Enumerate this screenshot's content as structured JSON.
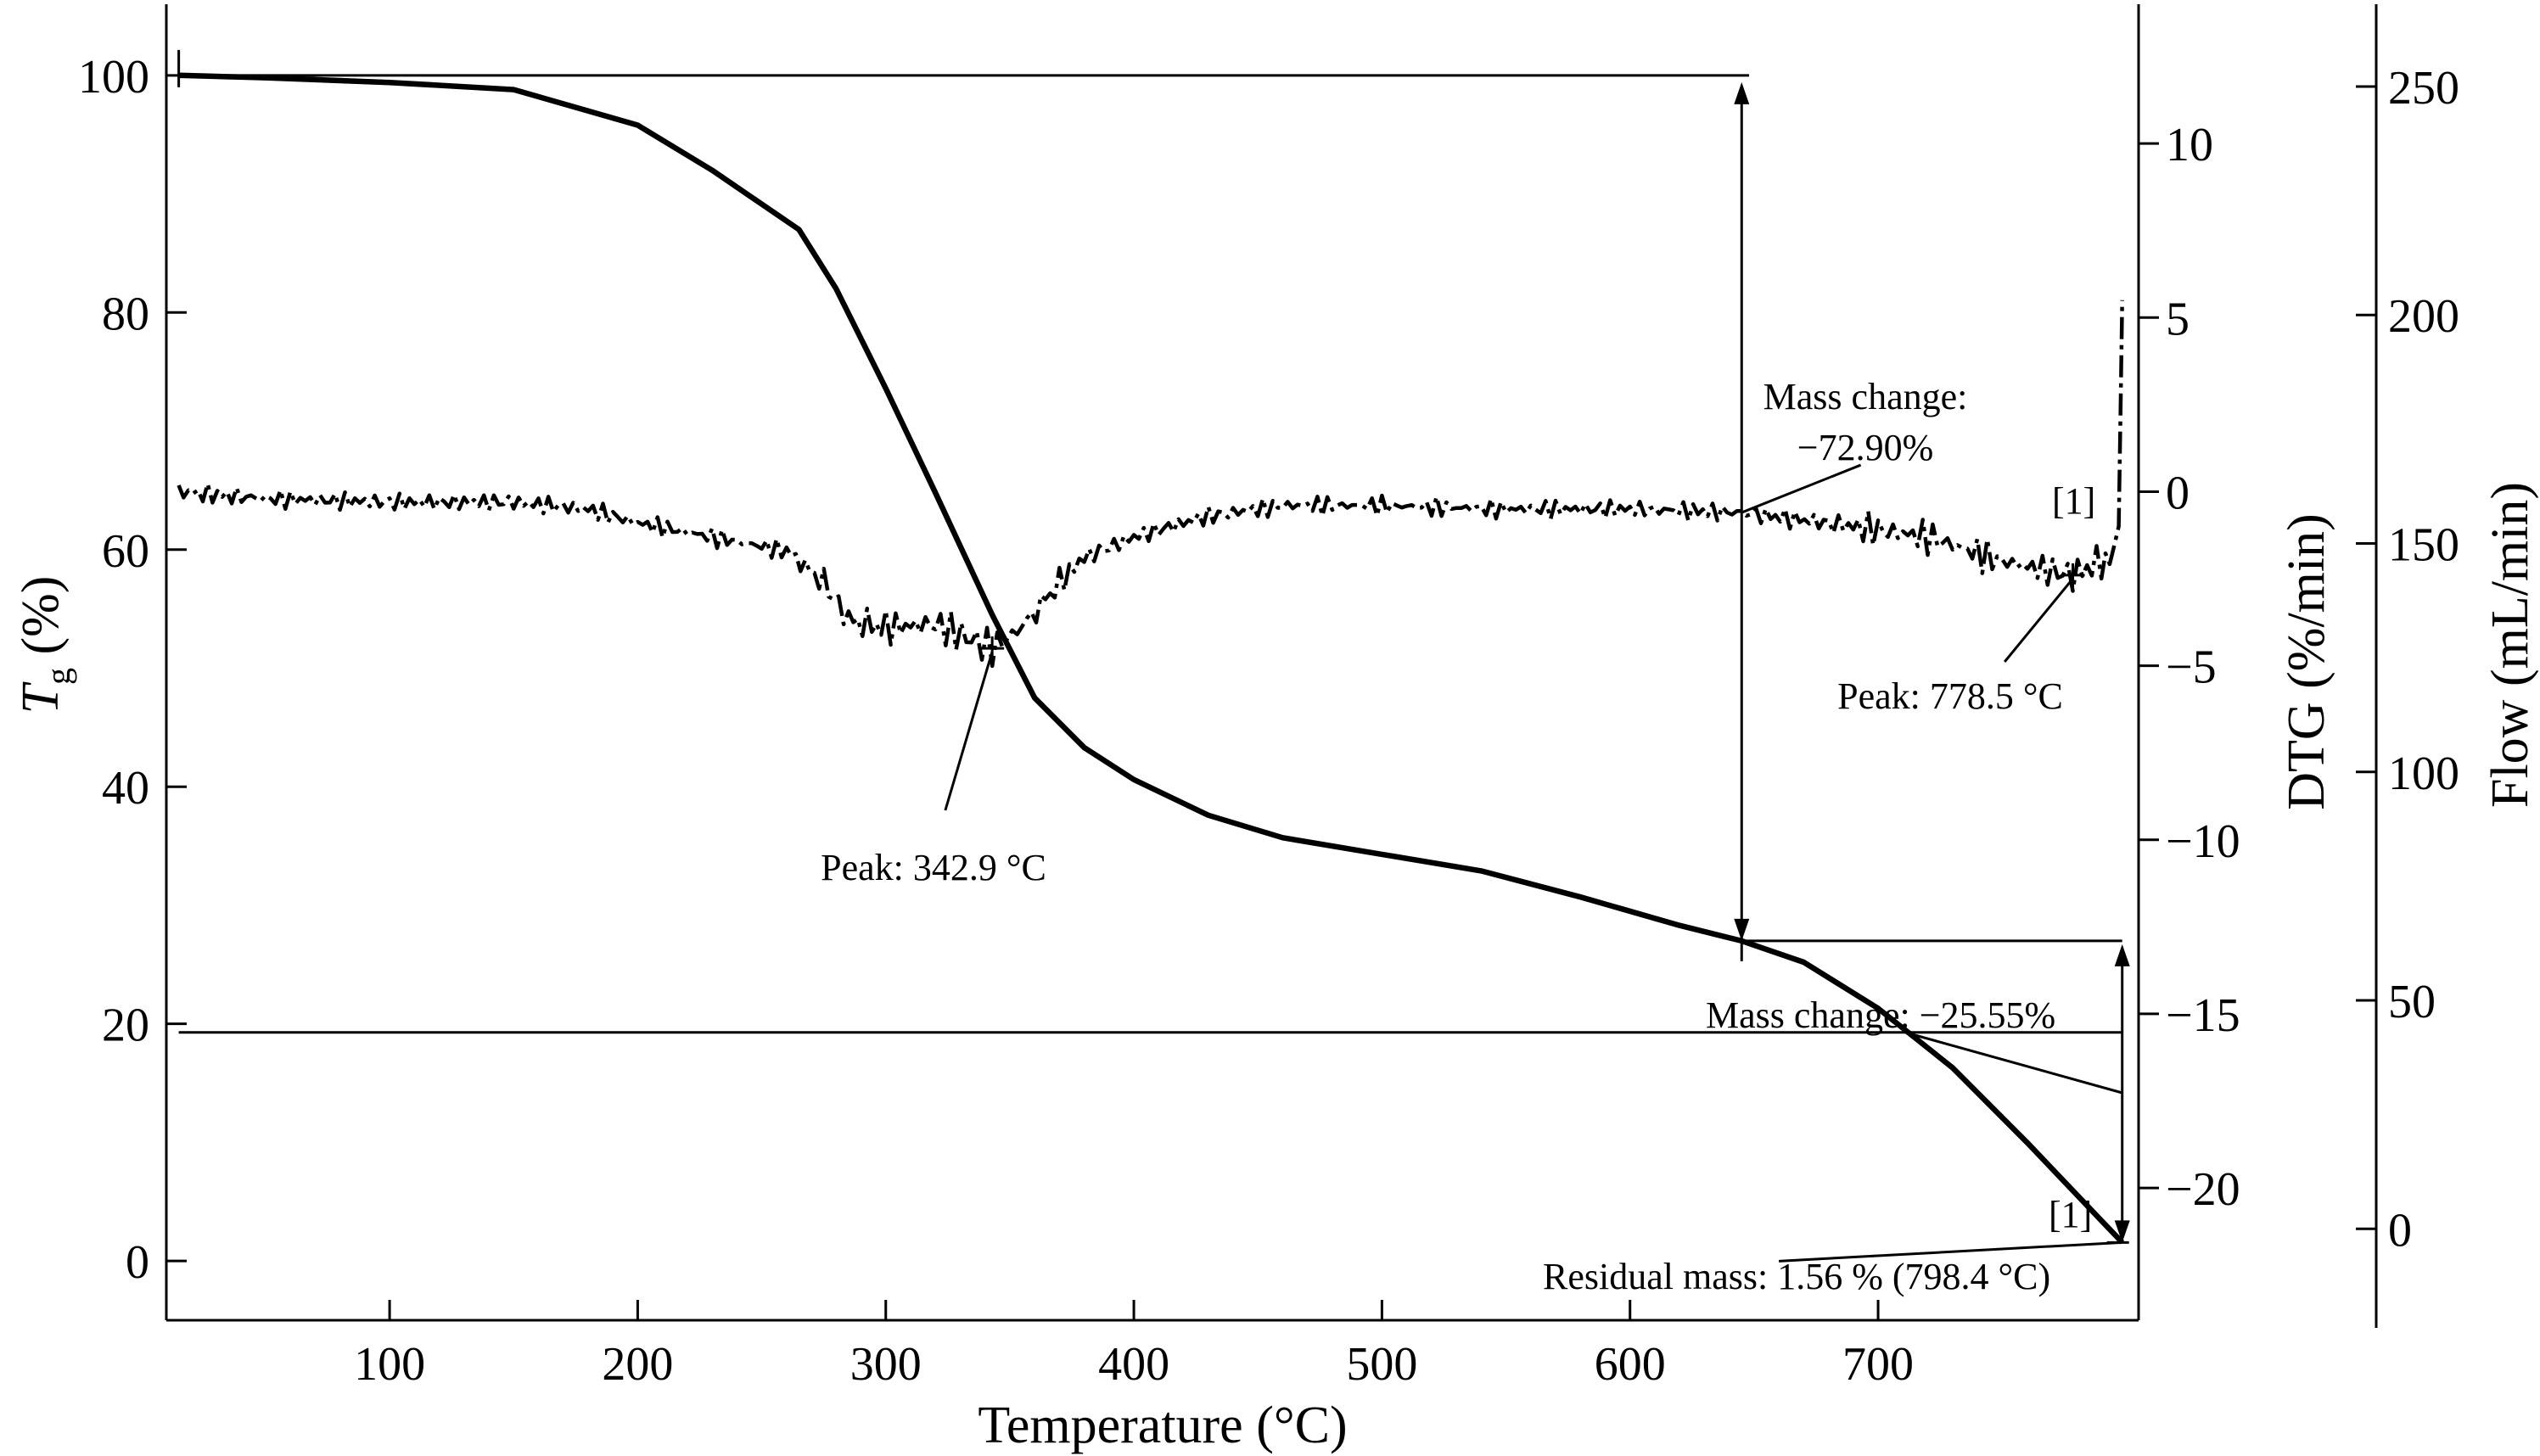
{
  "chart_data": {
    "type": "line",
    "xlabel": "Temperature (°C)",
    "y_left_label_main": "T",
    "y_left_label_sub": "g",
    "y_left_label_unit": " (%)",
    "y_right1_label": "DTG (%/min)",
    "y_right2_label": "Flow (mL/min)",
    "xlim": [
      10,
      805
    ],
    "ylim_left": [
      -5,
      106
    ],
    "ylim_dtg": [
      -23.8,
      14
    ],
    "ylim_flow": [
      -20,
      268
    ],
    "x_ticks": [
      100,
      200,
      300,
      400,
      500,
      600,
      700
    ],
    "y_left_ticks": [
      0,
      20,
      40,
      60,
      80,
      100
    ],
    "y_dtg_ticks": [
      -20,
      -15,
      -10,
      -5,
      0,
      5,
      10
    ],
    "y_flow_ticks": [
      0,
      50,
      100,
      150,
      200,
      250
    ],
    "series": [
      {
        "name": "",
        "axis": "left",
        "style": "solid",
        "x": [
          15,
          50,
          100,
          150,
          200,
          230,
          265,
          280,
          300,
          320,
          342.9,
          360,
          380,
          400,
          430,
          460,
          500,
          540,
          580,
          620,
          645,
          670,
          700,
          730,
          760,
          790,
          798.4
        ],
        "y": [
          100.0,
          99.8,
          99.4,
          98.8,
          95.8,
          92.0,
          87.0,
          82.0,
          73.6,
          64.8,
          54.5,
          47.5,
          43.3,
          40.6,
          37.6,
          35.7,
          34.3,
          32.9,
          30.7,
          28.3,
          27.0,
          25.2,
          21.3,
          16.3,
          10.0,
          3.4,
          1.56
        ]
      },
      {
        "name": "",
        "axis": "dtg",
        "style": "dash-dot",
        "x": [
          15,
          50,
          100,
          150,
          180,
          200,
          230,
          260,
          275,
          285,
          300,
          320,
          342.9,
          355,
          370,
          380,
          400,
          430,
          460,
          500,
          550,
          600,
          645,
          680,
          720,
          750,
          778.5,
          790,
          795,
          797,
          798.4
        ],
        "y": [
          0.0,
          -0.2,
          -0.3,
          -0.3,
          -0.5,
          -0.9,
          -1.3,
          -1.7,
          -2.6,
          -3.7,
          -3.9,
          -3.8,
          -4.5,
          -3.9,
          -2.6,
          -1.9,
          -1.3,
          -0.7,
          -0.4,
          -0.4,
          -0.5,
          -0.5,
          -0.6,
          -0.9,
          -1.3,
          -2.0,
          -2.4,
          -2.0,
          -1.6,
          -1.0,
          5.5
        ]
      },
      {
        "name": "",
        "axis": "flow",
        "style": "solid",
        "x": [
          15,
          798.4
        ],
        "y": [
          43,
          43
        ]
      }
    ],
    "annotations": {
      "peak1_label": "Peak: 342.9 °C",
      "peak2_label": "Peak: 778.5 °C",
      "mass_change1_line1": "Mass change:",
      "mass_change1_line2": "−72.90%",
      "mass_change2_label": "Mass change: −25.55%",
      "residual_label": "Residual mass: 1.56 % (798.4 °C)",
      "marker_top": "[1]",
      "marker_bottom": "[1]"
    },
    "grid": false,
    "legend": "none"
  }
}
